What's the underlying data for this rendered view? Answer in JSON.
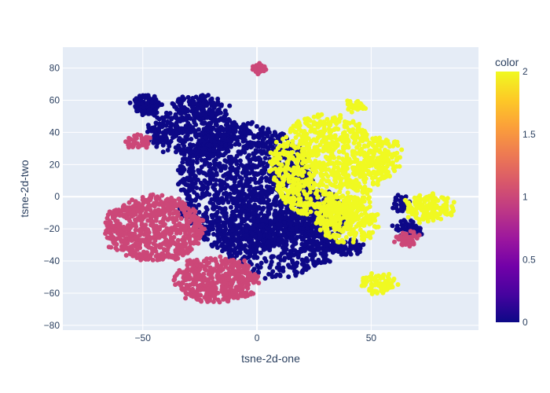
{
  "chart_data": {
    "type": "scatter",
    "xlabel": "tsne-2d-one",
    "ylabel": "tsne-2d-two",
    "xlim": [
      -85,
      97
    ],
    "ylim": [
      -83,
      93
    ],
    "xticks": [
      -50,
      0,
      50
    ],
    "yticks": [
      -80,
      -60,
      -40,
      -20,
      0,
      20,
      40,
      60,
      80
    ],
    "xtick_labels": [
      "−50",
      "0",
      "50"
    ],
    "ytick_labels": [
      "−80",
      "−60",
      "−40",
      "−20",
      "0",
      "20",
      "40",
      "60",
      "80"
    ],
    "grid": true,
    "plot_background": "#e5ecf6",
    "colorbar": {
      "title": "color",
      "range": [
        0,
        2
      ],
      "ticks": [
        0,
        0.5,
        1,
        1.5,
        2
      ],
      "tick_labels": [
        "0",
        "0.5",
        "1",
        "1.5",
        "2"
      ],
      "colors": [
        "#0d0887",
        "#46039f",
        "#7201a8",
        "#9c179e",
        "#bd3786",
        "#d8576b",
        "#ed7953",
        "#fb9f3a",
        "#fdca26",
        "#f0f921"
      ]
    },
    "series": [
      {
        "value": 0,
        "color": "#0d0887",
        "clusters": [
          {
            "cx": -5,
            "cy": 5,
            "rx": 30,
            "ry": 40,
            "n": 1400
          },
          {
            "cx": 10,
            "cy": -30,
            "rx": 25,
            "ry": 20,
            "n": 500
          },
          {
            "cx": -28,
            "cy": 40,
            "rx": 20,
            "ry": 14,
            "n": 350
          },
          {
            "cx": -49,
            "cy": 57,
            "rx": 6,
            "ry": 6,
            "n": 120
          },
          {
            "cx": -25,
            "cy": 55,
            "rx": 12,
            "ry": 8,
            "n": 150
          },
          {
            "cx": 25,
            "cy": -15,
            "rx": 14,
            "ry": 20,
            "n": 300
          },
          {
            "cx": 40,
            "cy": -32,
            "rx": 7,
            "ry": 5,
            "n": 60
          },
          {
            "cx": 66,
            "cy": -20,
            "rx": 6,
            "ry": 5,
            "n": 60
          },
          {
            "cx": 63,
            "cy": -4,
            "rx": 3,
            "ry": 5,
            "n": 30
          }
        ]
      },
      {
        "value": 1,
        "color": "#cc4778",
        "clusters": [
          {
            "cx": -45,
            "cy": -20,
            "rx": 22,
            "ry": 20,
            "n": 700
          },
          {
            "cx": -18,
            "cy": -52,
            "rx": 18,
            "ry": 14,
            "n": 450
          },
          {
            "cx": -52,
            "cy": 34,
            "rx": 5,
            "ry": 4,
            "n": 50
          },
          {
            "cx": 1,
            "cy": 80,
            "rx": 3,
            "ry": 2.2,
            "n": 40
          },
          {
            "cx": 66,
            "cy": -26,
            "rx": 5,
            "ry": 4,
            "n": 60
          }
        ]
      },
      {
        "value": 2,
        "color": "#f0f921",
        "clusters": [
          {
            "cx": 30,
            "cy": 18,
            "rx": 24,
            "ry": 33,
            "n": 900
          },
          {
            "cx": 40,
            "cy": -15,
            "rx": 14,
            "ry": 14,
            "n": 250
          },
          {
            "cx": 55,
            "cy": 25,
            "rx": 8,
            "ry": 13,
            "n": 120
          },
          {
            "cx": 75,
            "cy": -7,
            "rx": 11,
            "ry": 8,
            "n": 160
          },
          {
            "cx": 53,
            "cy": -54,
            "rx": 7,
            "ry": 6,
            "n": 80
          },
          {
            "cx": 43,
            "cy": 56,
            "rx": 4,
            "ry": 3,
            "n": 30
          }
        ]
      }
    ]
  }
}
